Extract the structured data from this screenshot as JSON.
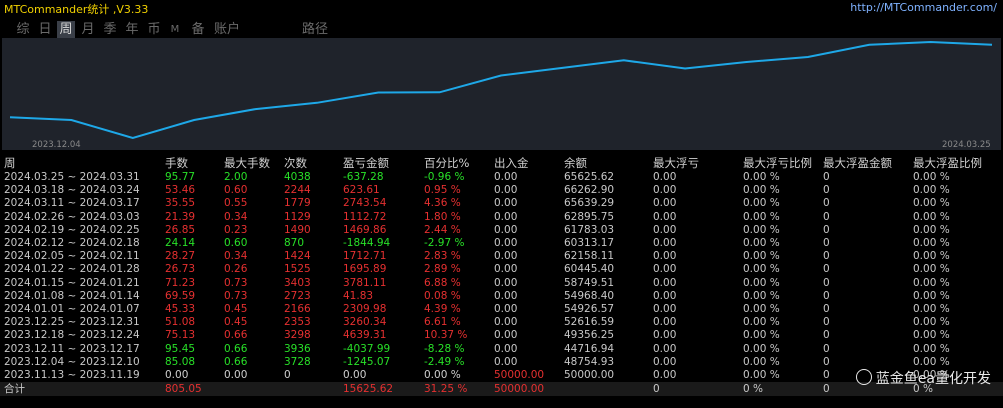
{
  "title": "MTCommander统计 ,V3.33",
  "site": "http://MTCommander.com/",
  "tabs": [
    "综",
    "日",
    "周",
    "月",
    "季",
    "年",
    "币",
    "M",
    "备",
    "账户",
    "路径"
  ],
  "active_tab": 2,
  "chart": {
    "x_start_label": "2023.12.04",
    "x_end_label": "2024.03.25",
    "line_color": "#1ea8e8",
    "series": [
      49356.25,
      48754.93,
      44716.94,
      48754.93,
      51200,
      52616.59,
      54926.57,
      54968.4,
      58749.51,
      60445.4,
      62158.11,
      60313.17,
      61783.03,
      62895.75,
      65639.29,
      66262.9,
      65625.62
    ]
  },
  "table": {
    "headers": [
      "周",
      "手数",
      "最大手数",
      "次数",
      "盈亏金额",
      "百分比%",
      "出入金",
      "余额",
      "最大浮亏",
      "最大浮亏比例",
      "最大浮盈金额",
      "最大浮盈比例"
    ],
    "rows": [
      [
        "2024.03.25 ~ 2024.03.31",
        "95.77",
        "2.00",
        "4038",
        "-637.28",
        "-0.96 %",
        "0.00",
        "65625.62",
        "0.00",
        "0.00 %",
        "0",
        "0.00 %"
      ],
      [
        "2024.03.18 ~ 2024.03.24",
        "53.46",
        "0.60",
        "2244",
        "623.61",
        "0.95 %",
        "0.00",
        "66262.90",
        "0.00",
        "0.00 %",
        "0",
        "0.00 %"
      ],
      [
        "2024.03.11 ~ 2024.03.17",
        "35.55",
        "0.55",
        "1779",
        "2743.54",
        "4.36 %",
        "0.00",
        "65639.29",
        "0.00",
        "0.00 %",
        "0",
        "0.00 %"
      ],
      [
        "2024.02.26 ~ 2024.03.03",
        "21.39",
        "0.34",
        "1129",
        "1112.72",
        "1.80 %",
        "0.00",
        "62895.75",
        "0.00",
        "0.00 %",
        "0",
        "0.00 %"
      ],
      [
        "2024.02.19 ~ 2024.02.25",
        "26.85",
        "0.23",
        "1490",
        "1469.86",
        "2.44 %",
        "0.00",
        "61783.03",
        "0.00",
        "0.00 %",
        "0",
        "0.00 %"
      ],
      [
        "2024.02.12 ~ 2024.02.18",
        "24.14",
        "0.60",
        "870",
        "-1844.94",
        "-2.97 %",
        "0.00",
        "60313.17",
        "0.00",
        "0.00 %",
        "0",
        "0.00 %"
      ],
      [
        "2024.02.05 ~ 2024.02.11",
        "28.27",
        "0.34",
        "1424",
        "1712.71",
        "2.83 %",
        "0.00",
        "62158.11",
        "0.00",
        "0.00 %",
        "0",
        "0.00 %"
      ],
      [
        "2024.01.22 ~ 2024.01.28",
        "26.73",
        "0.26",
        "1525",
        "1695.89",
        "2.89 %",
        "0.00",
        "60445.40",
        "0.00",
        "0.00 %",
        "0",
        "0.00 %"
      ],
      [
        "2024.01.15 ~ 2024.01.21",
        "71.23",
        "0.73",
        "3403",
        "3781.11",
        "6.88 %",
        "0.00",
        "58749.51",
        "0.00",
        "0.00 %",
        "0",
        "0.00 %"
      ],
      [
        "2024.01.08 ~ 2024.01.14",
        "69.59",
        "0.73",
        "2723",
        "41.83",
        "0.08 %",
        "0.00",
        "54968.40",
        "0.00",
        "0.00 %",
        "0",
        "0.00 %"
      ],
      [
        "2024.01.01 ~ 2024.01.07",
        "45.33",
        "0.45",
        "2166",
        "2309.98",
        "4.39 %",
        "0.00",
        "54926.57",
        "0.00",
        "0.00 %",
        "0",
        "0.00 %"
      ],
      [
        "2023.12.25 ~ 2023.12.31",
        "51.08",
        "0.45",
        "2353",
        "3260.34",
        "6.61 %",
        "0.00",
        "52616.59",
        "0.00",
        "0.00 %",
        "0",
        "0.00 %"
      ],
      [
        "2023.12.18 ~ 2023.12.24",
        "75.13",
        "0.66",
        "3298",
        "4639.31",
        "10.37 %",
        "0.00",
        "49356.25",
        "0.00",
        "0.00 %",
        "0",
        "0.00 %"
      ],
      [
        "2023.12.11 ~ 2023.12.17",
        "95.45",
        "0.66",
        "3936",
        "-4037.99",
        "-8.28 %",
        "0.00",
        "44716.94",
        "0.00",
        "0.00 %",
        "0",
        "0.00 %"
      ],
      [
        "2023.12.04 ~ 2023.12.10",
        "85.08",
        "0.66",
        "3728",
        "-1245.07",
        "-2.49 %",
        "0.00",
        "48754.93",
        "0.00",
        "0.00 %",
        "0",
        "0.00 %"
      ],
      [
        "2023.11.13 ~ 2023.11.19",
        "0.00",
        "0.00",
        "0",
        "0.00",
        "0.00 %",
        "50000.00",
        "50000.00",
        "0.00",
        "0.00 %",
        "0",
        "0.00 %"
      ]
    ],
    "row_class": [
      "pos",
      "neg",
      "neg",
      "neg",
      "neg",
      "pos",
      "neg",
      "neg",
      "neg",
      "neg",
      "neg",
      "neg",
      "neg",
      "pos",
      "pos",
      "zero"
    ],
    "footer": [
      "合计",
      "805.05",
      "",
      "",
      "15625.62",
      "31.25 %",
      "50000.00",
      "",
      "0",
      "0 %",
      "0",
      "0 %"
    ]
  },
  "watermark": "蓝金鱼ea量化开发",
  "colors": {
    "positive": "#28e028",
    "negative": "#e53030",
    "accent": "#f0d000"
  }
}
